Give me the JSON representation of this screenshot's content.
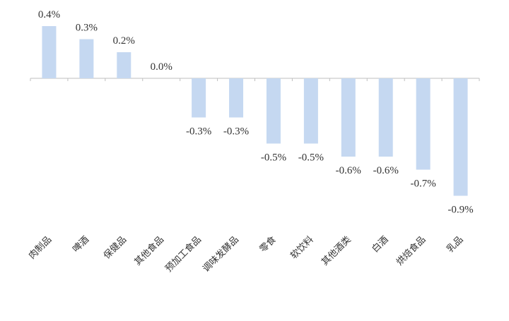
{
  "chart_data": {
    "type": "bar",
    "categories": [
      "肉制品",
      "啤酒",
      "保健品",
      "其他食品",
      "预加工食品",
      "调味发酵品",
      "零食",
      "软饮料",
      "其他酒类",
      "白酒",
      "烘焙食品",
      "乳品"
    ],
    "values": [
      0.4,
      0.3,
      0.2,
      0.0,
      -0.3,
      -0.3,
      -0.5,
      -0.5,
      -0.6,
      -0.6,
      -0.7,
      -0.9
    ],
    "value_labels": [
      "0.4%",
      "0.3%",
      "0.2%",
      "0.0%",
      "-0.3%",
      "-0.3%",
      "-0.5%",
      "-0.5%",
      "-0.6%",
      "-0.6%",
      "-0.7%",
      "-0.9%"
    ],
    "unit": "%",
    "title": "",
    "xlabel": "",
    "ylabel": "",
    "grid": false,
    "legend": "none",
    "bar_color": "#c5d8f1",
    "axis_color": "#bfbfbf"
  }
}
